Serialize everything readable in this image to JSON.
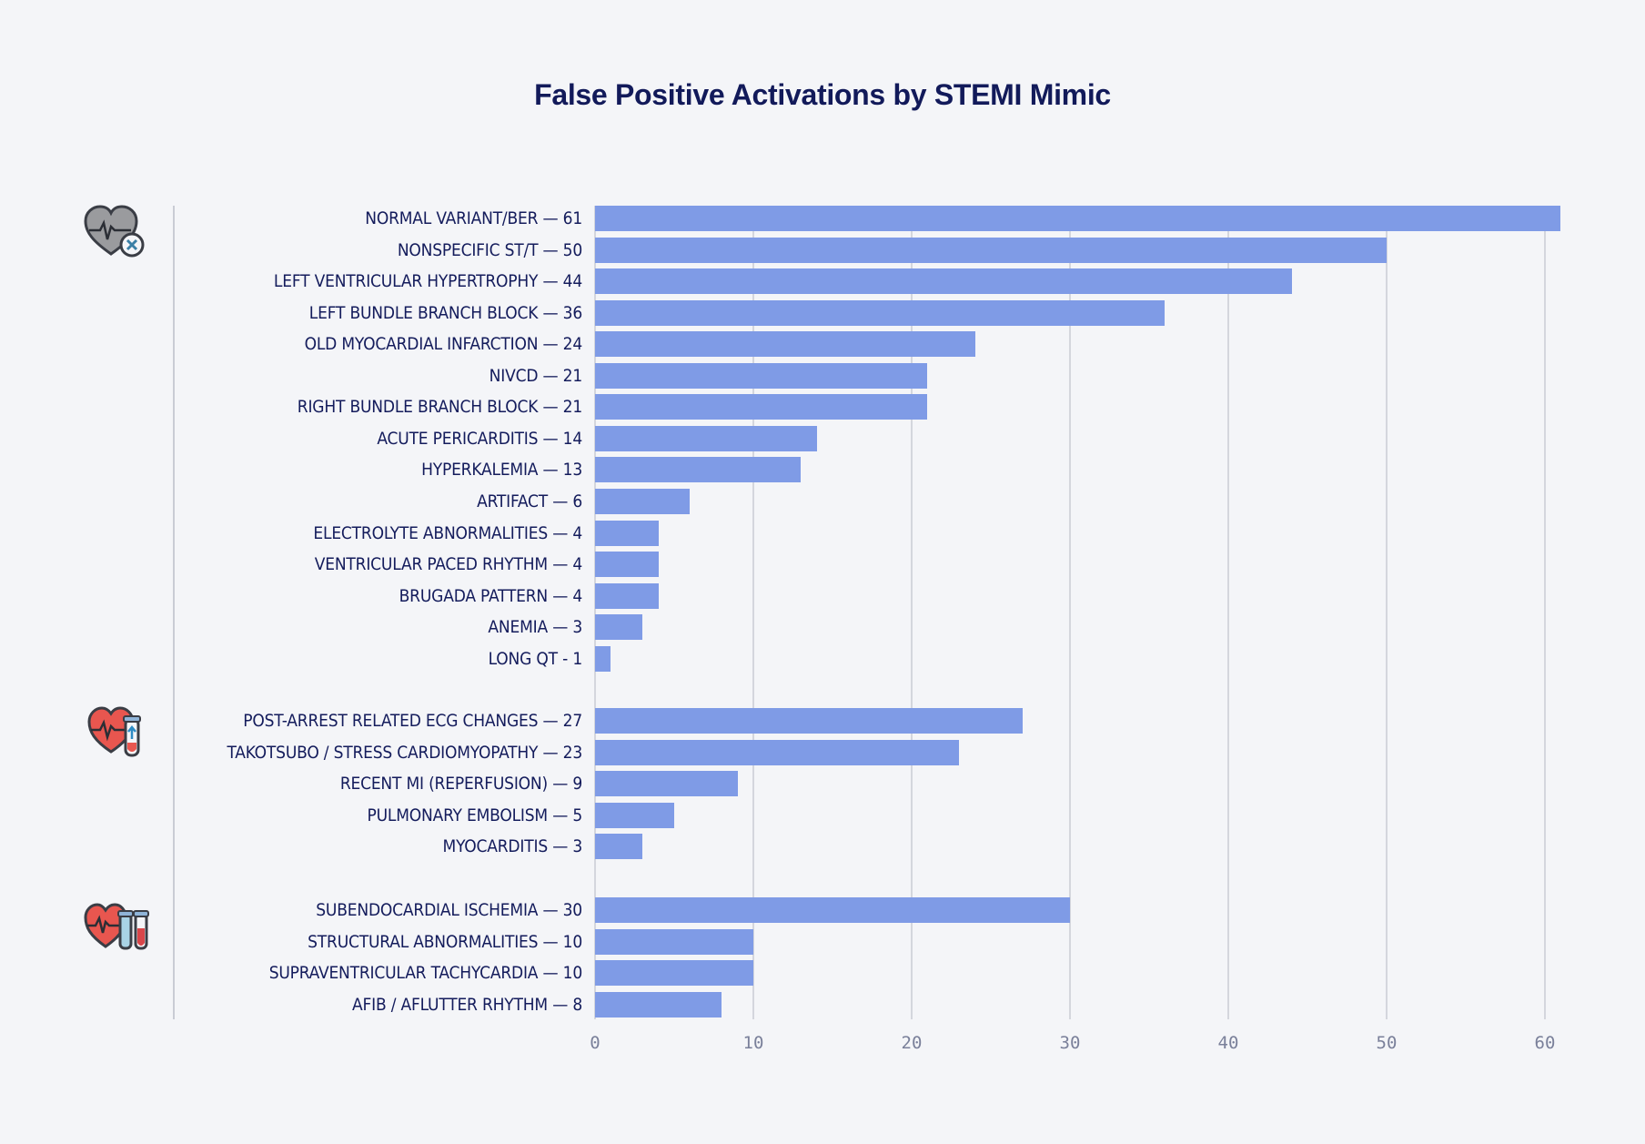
{
  "chart_data": {
    "type": "bar",
    "orientation": "horizontal",
    "title": "False Positive Activations by STEMI Mimic",
    "xlabel": "",
    "ylabel": "",
    "xlim": [
      0,
      61
    ],
    "x_ticks": [
      "0",
      "10",
      "20",
      "30",
      "40",
      "50",
      "60"
    ],
    "grid": true,
    "bar_color": "#7f9be6",
    "groups": [
      {
        "icon": "heart-x-icon",
        "categories": [
          "NORMAL VARIANT/BER",
          "NONSPECIFIC ST/T",
          "LEFT VENTRICULAR HYPERTROPHY",
          "LEFT BUNDLE BRANCH BLOCK",
          "OLD MYOCARDIAL INFARCTION",
          "NIVCD",
          "RIGHT BUNDLE BRANCH BLOCK",
          "ACUTE PERICARDITIS",
          "HYPERKALEMIA",
          "ARTIFACT",
          "ELECTROLYTE ABNORMALITIES",
          "VENTRICULAR PACED RHYTHM",
          "BRUGADA PATTERN",
          "ANEMIA",
          "LONG QT"
        ],
        "values": [
          61,
          50,
          44,
          36,
          24,
          21,
          21,
          14,
          13,
          6,
          4,
          4,
          4,
          3,
          1
        ]
      },
      {
        "icon": "heart-test-tube-icon",
        "categories": [
          "POST-ARREST RELATED ECG CHANGES",
          "TAKOTSUBO / STRESS CARDIOMYOPATHY",
          "RECENT MI (REPERFUSION)",
          "PULMONARY EMBOLISM",
          "MYOCARDITIS"
        ],
        "values": [
          27,
          23,
          9,
          5,
          3
        ]
      },
      {
        "icon": "heart-two-test-tubes-icon",
        "categories": [
          "SUBENDOCARDIAL ISCHEMIA",
          "STRUCTURAL ABNORMALITIES",
          "SUPRAVENTRICULAR TACHYCARDIA",
          "AFIB / AFLUTTER RHYTHM"
        ],
        "values": [
          30,
          10,
          10,
          8
        ]
      }
    ]
  },
  "title": "False Positive Activations by STEMI Mimic",
  "labels": {
    "g0": [
      "NORMAL VARIANT/BER — 61",
      "NONSPECIFIC ST/T — 50",
      "LEFT VENTRICULAR HYPERTROPHY — 44",
      "LEFT BUNDLE BRANCH BLOCK — 36",
      "OLD MYOCARDIAL INFARCTION — 24",
      "NIVCD — 21",
      "RIGHT BUNDLE BRANCH BLOCK — 21",
      "ACUTE PERICARDITIS — 14",
      "HYPERKALEMIA — 13",
      "ARTIFACT — 6",
      "ELECTROLYTE ABNORMALITIES — 4",
      "VENTRICULAR PACED RHYTHM — 4",
      "BRUGADA PATTERN — 4",
      "ANEMIA — 3",
      "LONG QT - 1"
    ],
    "g1": [
      "POST-ARREST RELATED ECG CHANGES — 27",
      "TAKOTSUBO / STRESS CARDIOMYOPATHY — 23",
      "RECENT MI (REPERFUSION) — 9",
      "PULMONARY EMBOLISM — 5",
      "MYOCARDITIS — 3"
    ],
    "g2": [
      "SUBENDOCARDIAL ISCHEMIA — 30",
      "STRUCTURAL ABNORMALITIES — 10",
      "SUPRAVENTRICULAR TACHYCARDIA — 10",
      "AFIB / AFLUTTER RHYTHM — 8"
    ]
  },
  "ticks": [
    "0",
    "10",
    "20",
    "30",
    "40",
    "50",
    "60"
  ],
  "colors": {
    "bar": "#7f9be6",
    "title": "#121a5a",
    "label": "#141c5c",
    "tick": "#7a809a",
    "background": "#f4f5f8"
  }
}
